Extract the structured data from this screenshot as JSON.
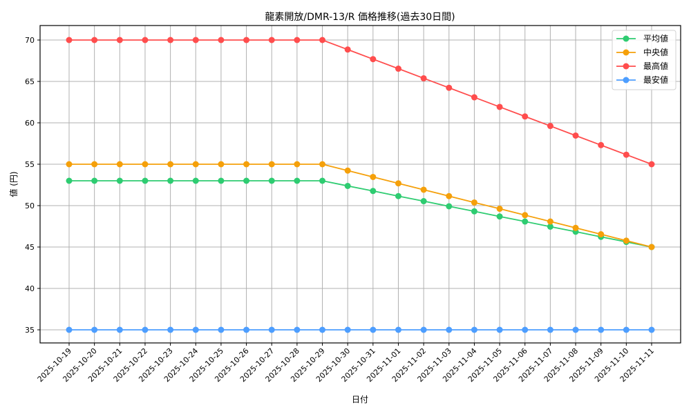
{
  "chart_data": {
    "type": "line",
    "title": "龍素開放/DMR-13/R 価格推移(過去30日間)",
    "xlabel": "日付",
    "ylabel": "値 (円)",
    "ylim": [
      33.3,
      71.7
    ],
    "yticks": [
      35,
      40,
      45,
      50,
      55,
      60,
      65,
      70
    ],
    "grid": true,
    "legend_position": "upper right",
    "x": [
      "2025-10-19",
      "2025-10-20",
      "2025-10-21",
      "2025-10-22",
      "2025-10-23",
      "2025-10-24",
      "2025-10-25",
      "2025-10-26",
      "2025-10-27",
      "2025-10-28",
      "2025-10-29",
      "2025-10-30",
      "2025-10-31",
      "2025-11-01",
      "2025-11-02",
      "2025-11-03",
      "2025-11-04",
      "2025-11-05",
      "2025-11-06",
      "2025-11-07",
      "2025-11-08",
      "2025-11-09",
      "2025-11-10",
      "2025-11-11"
    ],
    "series": [
      {
        "name": "平均値",
        "color": "#2ecc71",
        "values": [
          53,
          53,
          53,
          53,
          53,
          53,
          53,
          53,
          53,
          53,
          53,
          52.38,
          51.77,
          51.15,
          50.54,
          49.92,
          49.31,
          48.69,
          48.08,
          47.46,
          46.85,
          46.23,
          45.62,
          45
        ]
      },
      {
        "name": "中央値",
        "color": "#f5a00a",
        "values": [
          55,
          55,
          55,
          55,
          55,
          55,
          55,
          55,
          55,
          55,
          55,
          54.23,
          53.46,
          52.69,
          51.92,
          51.15,
          50.38,
          49.62,
          48.85,
          48.08,
          47.31,
          46.54,
          45.77,
          45
        ]
      },
      {
        "name": "最高値",
        "color": "#ff4d4d",
        "values": [
          70,
          70,
          70,
          70,
          70,
          70,
          70,
          70,
          70,
          70,
          70,
          68.85,
          67.69,
          66.54,
          65.38,
          64.23,
          63.08,
          61.92,
          60.77,
          59.62,
          58.46,
          57.31,
          56.15,
          55
        ]
      },
      {
        "name": "最安値",
        "color": "#4d9eff",
        "values": [
          35,
          35,
          35,
          35,
          35,
          35,
          35,
          35,
          35,
          35,
          35,
          35,
          35,
          35,
          35,
          35,
          35,
          35,
          35,
          35,
          35,
          35,
          35,
          35
        ]
      }
    ]
  }
}
